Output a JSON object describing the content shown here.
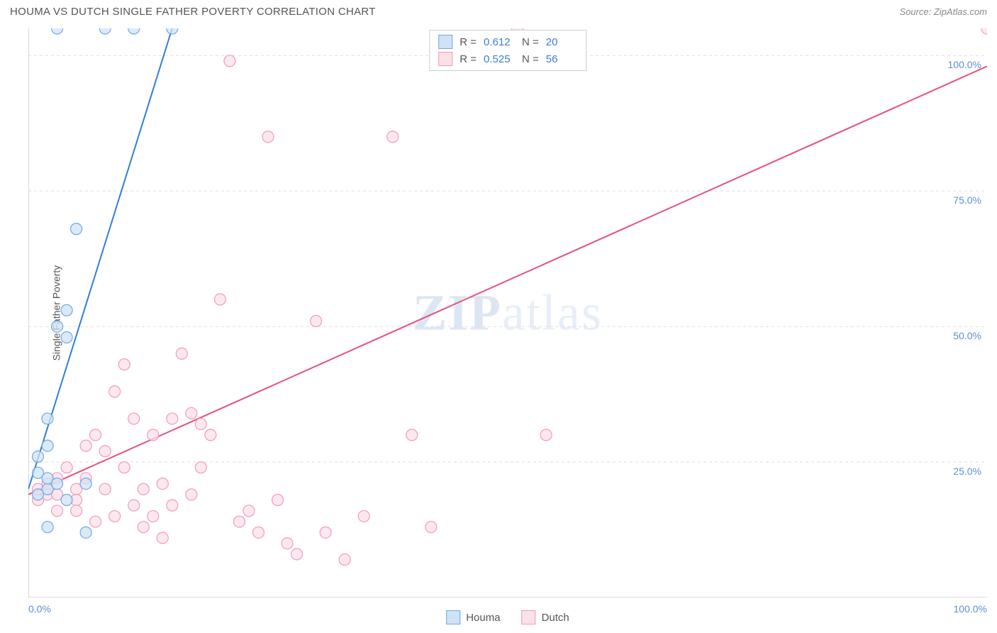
{
  "header": {
    "title": "HOUMA VS DUTCH SINGLE FATHER POVERTY CORRELATION CHART",
    "source": "Source: ZipAtlas.com"
  },
  "chart": {
    "type": "scatter",
    "watermark": "ZIPatlas",
    "watermark_bold_chars": 3,
    "y_axis_label": "Single Father Poverty",
    "xlim": [
      0,
      100
    ],
    "ylim": [
      0,
      105
    ],
    "x_tick_labels": {
      "min": "0.0%",
      "max": "100.0%"
    },
    "y_ticks": [
      25,
      50,
      75,
      100
    ],
    "y_tick_labels": [
      "25.0%",
      "50.0%",
      "75.0%",
      "100.0%"
    ],
    "x_minor_ticks": [
      10,
      20,
      30,
      40,
      50,
      60,
      70,
      80,
      90
    ],
    "background_color": "#ffffff",
    "grid_color": "#dddddd",
    "axis_color": "#cccccc",
    "label_color": "#5b8fd6",
    "marker_radius": 8,
    "marker_stroke_width": 1.2,
    "line_width": 2,
    "series": [
      {
        "name": "Houma",
        "color_fill": "#cfe3f7",
        "color_stroke": "#6fa8e0",
        "line_color": "#2f7ed8",
        "R": "0.612",
        "N": "20",
        "trend": {
          "x1": 0,
          "y1": 20,
          "x2": 15,
          "y2": 105
        },
        "points": [
          [
            1,
            23
          ],
          [
            1,
            26
          ],
          [
            2,
            20
          ],
          [
            2,
            28
          ],
          [
            2,
            33
          ],
          [
            3,
            50
          ],
          [
            4,
            48
          ],
          [
            4,
            53
          ],
          [
            5,
            68
          ],
          [
            6,
            12
          ],
          [
            2,
            13
          ],
          [
            3,
            105
          ],
          [
            8,
            105
          ],
          [
            11,
            105
          ],
          [
            15,
            105
          ],
          [
            1,
            19
          ],
          [
            2,
            22
          ],
          [
            3,
            21
          ],
          [
            6,
            21
          ],
          [
            4,
            18
          ]
        ]
      },
      {
        "name": "Dutch",
        "color_fill": "#fbe0e8",
        "color_stroke": "#f29bb5",
        "line_color": "#e6527a",
        "R": "0.525",
        "N": "56",
        "trend": {
          "x1": 0,
          "y1": 19,
          "x2": 100,
          "y2": 98
        },
        "points": [
          [
            1,
            18
          ],
          [
            1,
            20
          ],
          [
            2,
            19
          ],
          [
            2,
            21
          ],
          [
            3,
            22
          ],
          [
            3,
            19
          ],
          [
            4,
            24
          ],
          [
            5,
            20
          ],
          [
            5,
            18
          ],
          [
            6,
            22
          ],
          [
            6,
            28
          ],
          [
            7,
            30
          ],
          [
            8,
            20
          ],
          [
            8,
            27
          ],
          [
            9,
            15
          ],
          [
            9,
            38
          ],
          [
            10,
            43
          ],
          [
            10,
            24
          ],
          [
            11,
            17
          ],
          [
            11,
            33
          ],
          [
            12,
            20
          ],
          [
            12,
            13
          ],
          [
            13,
            15
          ],
          [
            13,
            30
          ],
          [
            14,
            21
          ],
          [
            15,
            17
          ],
          [
            15,
            33
          ],
          [
            16,
            45
          ],
          [
            17,
            34
          ],
          [
            17,
            19
          ],
          [
            18,
            32
          ],
          [
            18,
            24
          ],
          [
            19,
            30
          ],
          [
            20,
            55
          ],
          [
            21,
            99
          ],
          [
            22,
            14
          ],
          [
            23,
            16
          ],
          [
            24,
            12
          ],
          [
            25,
            85
          ],
          [
            26,
            18
          ],
          [
            27,
            10
          ],
          [
            28,
            8
          ],
          [
            30,
            51
          ],
          [
            31,
            12
          ],
          [
            33,
            7
          ],
          [
            35,
            15
          ],
          [
            38,
            85
          ],
          [
            40,
            30
          ],
          [
            42,
            13
          ],
          [
            51,
            105
          ],
          [
            54,
            30
          ],
          [
            100,
            105
          ],
          [
            5,
            16
          ],
          [
            7,
            14
          ],
          [
            14,
            11
          ],
          [
            3,
            16
          ]
        ]
      }
    ],
    "legend_bottom": [
      {
        "name": "Houma",
        "fill": "#cfe3f7",
        "stroke": "#6fa8e0"
      },
      {
        "name": "Dutch",
        "fill": "#fbe0e8",
        "stroke": "#f29bb5"
      }
    ],
    "legend_top_labels": {
      "R": "R =",
      "N": "N ="
    }
  }
}
